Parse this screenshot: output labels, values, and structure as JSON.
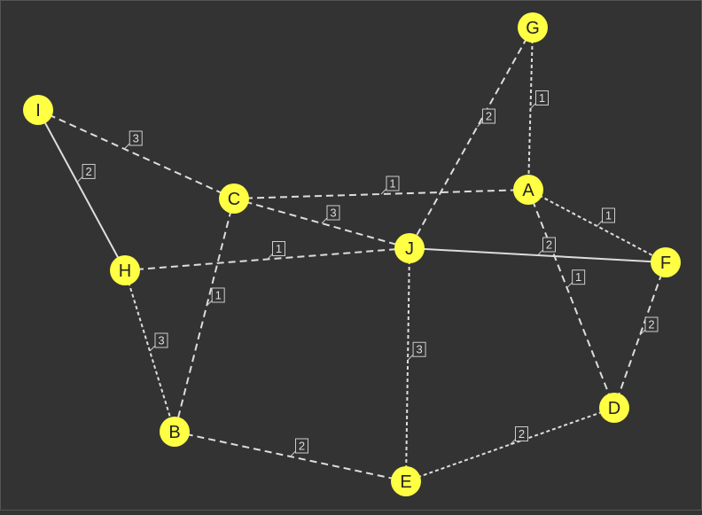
{
  "graph": {
    "colors": {
      "background": "#333333",
      "node_fill": "#ffff44",
      "node_text": "#222222",
      "edge": "#dddddd",
      "label_box_fill": "#333333",
      "label_box_stroke": "#cccccc",
      "label_text": "#dddddd"
    },
    "nodes": [
      {
        "id": "A",
        "label": "A"
      },
      {
        "id": "B",
        "label": "B"
      },
      {
        "id": "C",
        "label": "C"
      },
      {
        "id": "D",
        "label": "D"
      },
      {
        "id": "E",
        "label": "E"
      },
      {
        "id": "F",
        "label": "F"
      },
      {
        "id": "G",
        "label": "G"
      },
      {
        "id": "H",
        "label": "H"
      },
      {
        "id": "I",
        "label": "I"
      },
      {
        "id": "J",
        "label": "J"
      }
    ],
    "edges": [
      {
        "from": "I",
        "to": "H",
        "weight": "2",
        "style": "solid"
      },
      {
        "from": "I",
        "to": "C",
        "weight": "3",
        "style": "dashed"
      },
      {
        "from": "C",
        "to": "A",
        "weight": "1",
        "style": "dashed"
      },
      {
        "from": "C",
        "to": "J",
        "weight": "3",
        "style": "dashed"
      },
      {
        "from": "C",
        "to": "B",
        "weight": "1",
        "style": "dashed"
      },
      {
        "from": "G",
        "to": "J",
        "weight": "2",
        "style": "dashed"
      },
      {
        "from": "G",
        "to": "A",
        "weight": "1",
        "style": "dotted"
      },
      {
        "from": "A",
        "to": "F",
        "weight": "1",
        "style": "dotted"
      },
      {
        "from": "A",
        "to": "D",
        "weight": "1",
        "style": "dashed"
      },
      {
        "from": "H",
        "to": "J",
        "weight": "1",
        "style": "dashed"
      },
      {
        "from": "H",
        "to": "B",
        "weight": "3",
        "style": "dotted"
      },
      {
        "from": "J",
        "to": "F",
        "weight": "2",
        "style": "solid"
      },
      {
        "from": "J",
        "to": "E",
        "weight": "3",
        "style": "dotted"
      },
      {
        "from": "F",
        "to": "D",
        "weight": "2",
        "style": "dashed"
      },
      {
        "from": "B",
        "to": "E",
        "weight": "2",
        "style": "dashed"
      },
      {
        "from": "E",
        "to": "D",
        "weight": "2",
        "style": "dotted"
      }
    ]
  }
}
